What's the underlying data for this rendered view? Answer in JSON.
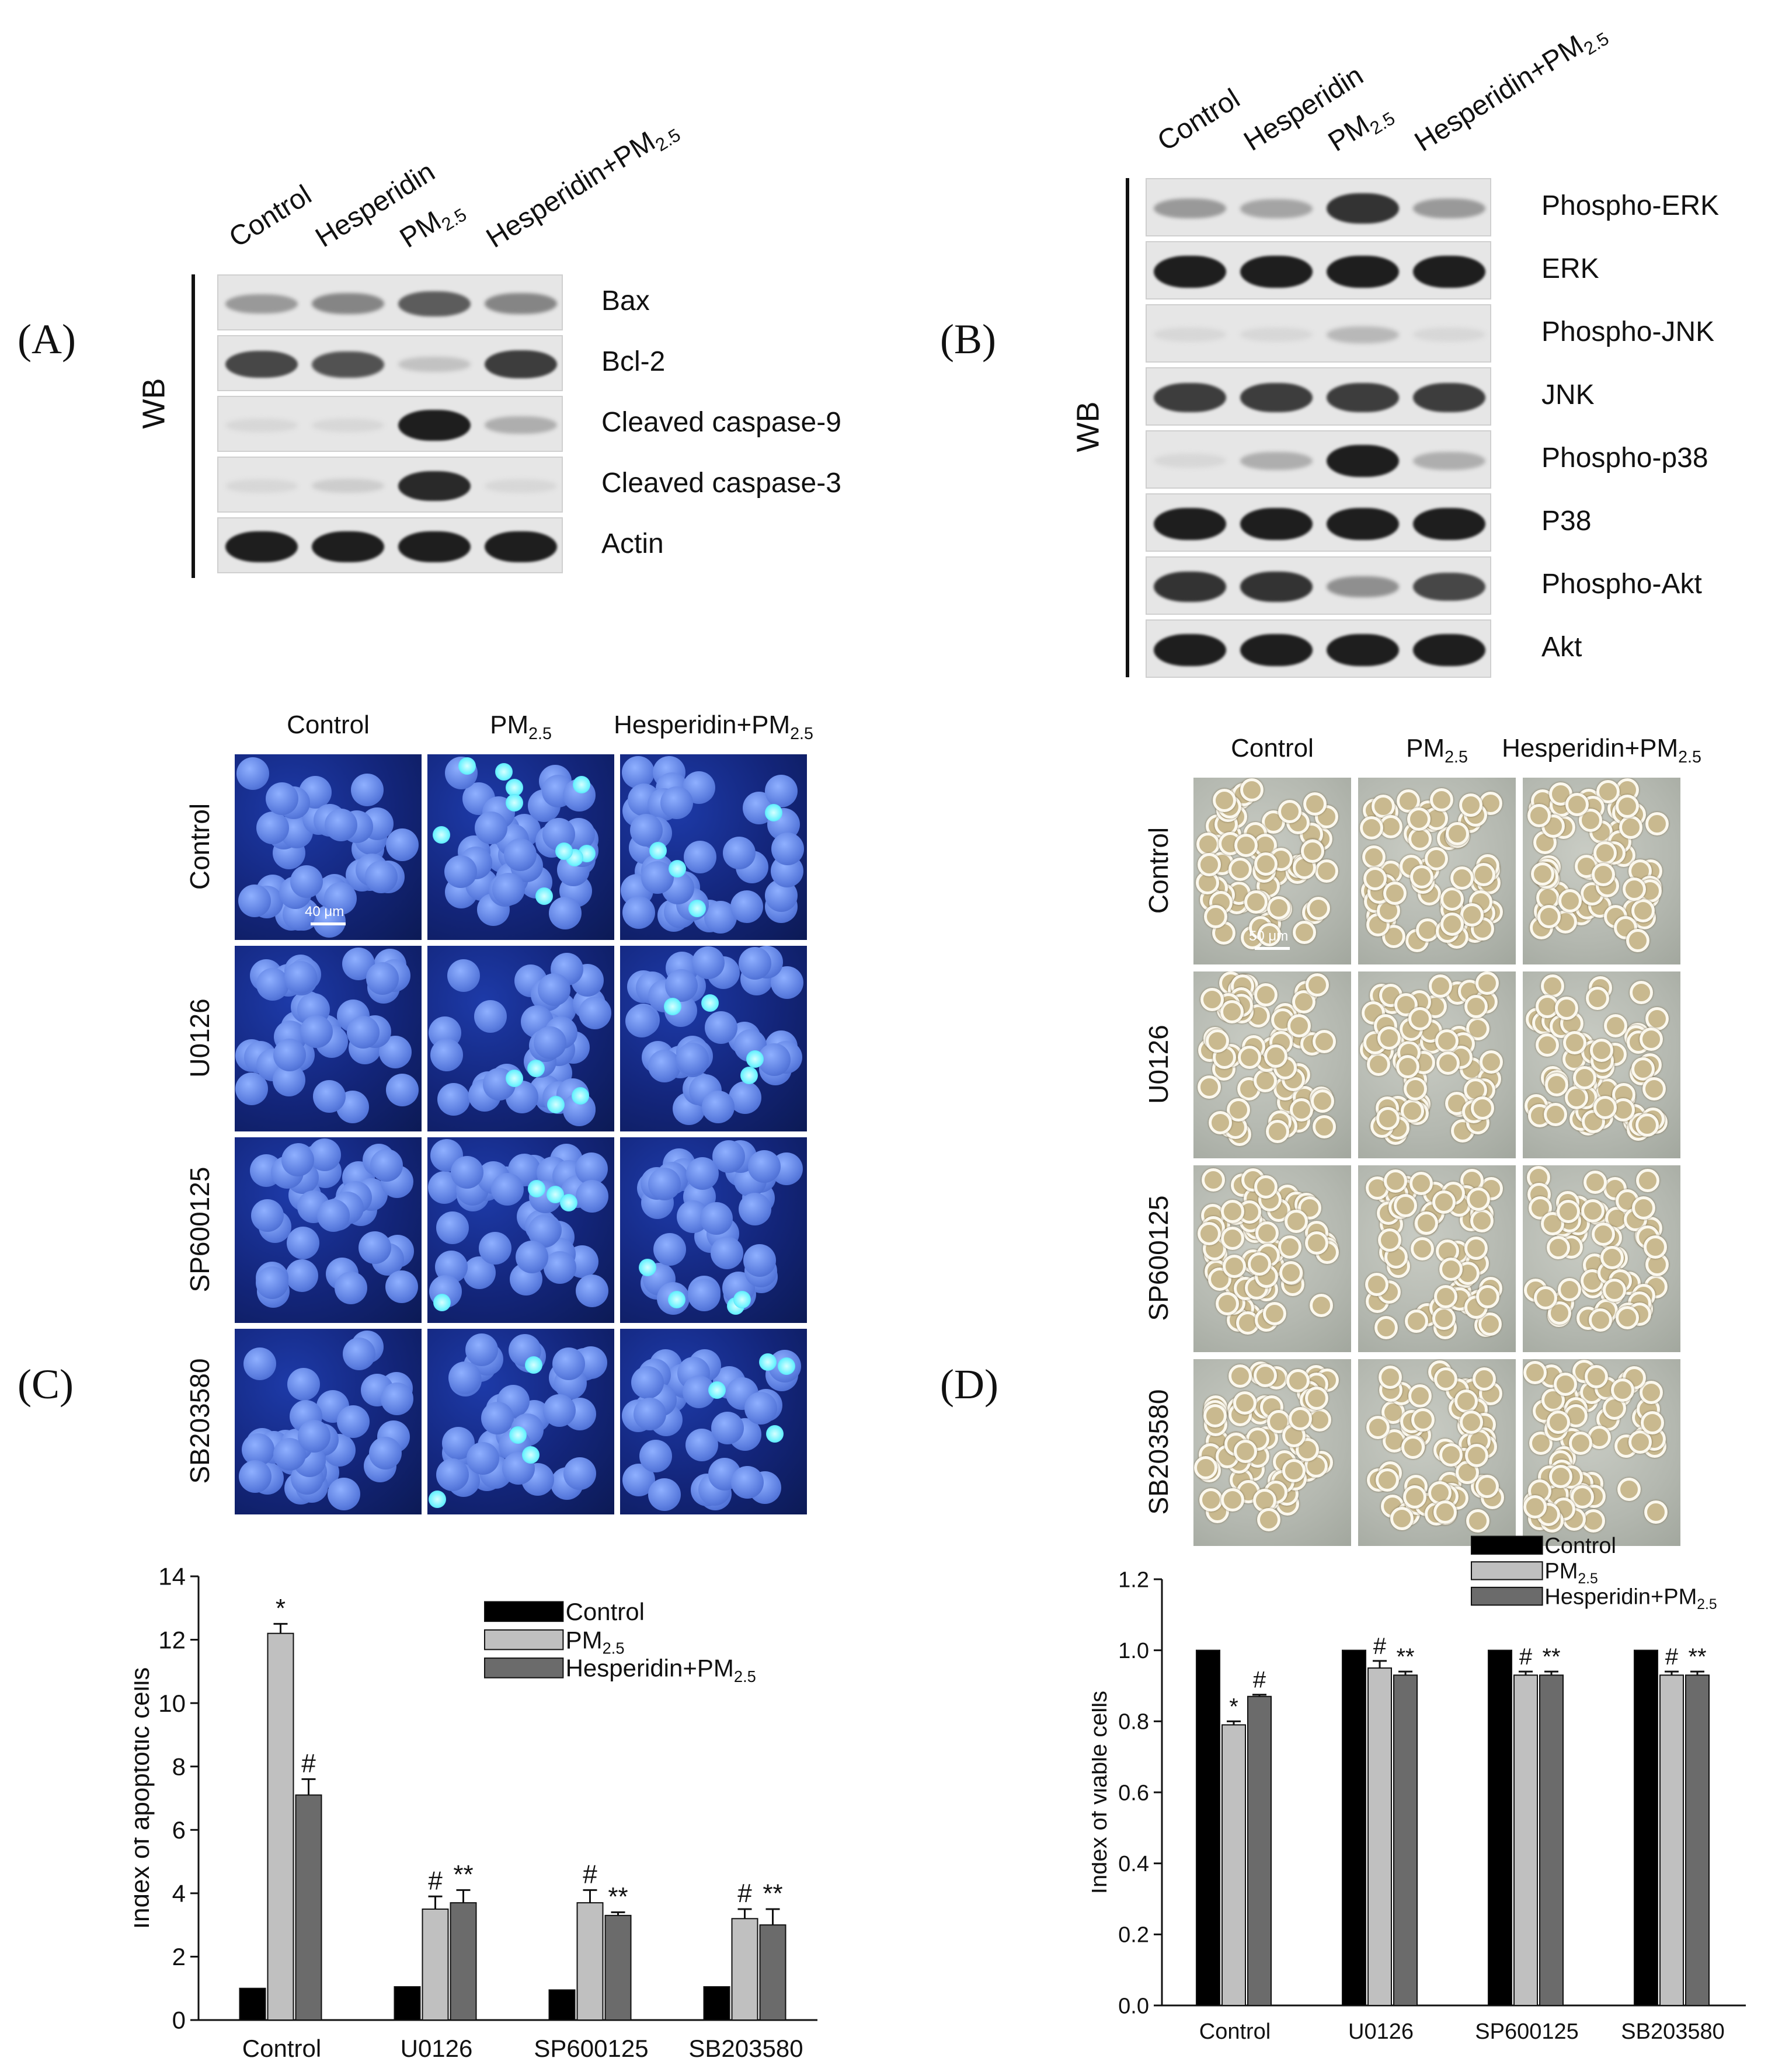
{
  "panelA": {
    "label": "(A)",
    "lanes": [
      "Control",
      "Hesperidin",
      "PM2.5",
      "Hesperidin+PM2.5"
    ],
    "method": "WB",
    "rows": [
      "Bax",
      "Bcl-2",
      "Cleaved caspase-9",
      "Cleaved caspase-3",
      "Actin"
    ],
    "band_intensity": [
      [
        0.35,
        0.45,
        0.65,
        0.45
      ],
      [
        0.75,
        0.7,
        0.15,
        0.8
      ],
      [
        0.05,
        0.05,
        0.95,
        0.25
      ],
      [
        0.05,
        0.1,
        0.9,
        0.05
      ],
      [
        0.95,
        0.95,
        0.95,
        0.95
      ]
    ]
  },
  "panelB": {
    "label": "(B)",
    "lanes": [
      "Control",
      "Hesperidin",
      "PM2.5",
      "Hesperidin+PM2.5"
    ],
    "method": "WB",
    "rows": [
      "Phospho-ERK",
      "ERK",
      "Phospho-JNK",
      "JNK",
      "Phospho-p38",
      "P38",
      "Phospho-Akt",
      "Akt"
    ],
    "band_intensity": [
      [
        0.35,
        0.3,
        0.85,
        0.35
      ],
      [
        0.95,
        0.95,
        0.95,
        0.95
      ],
      [
        0.05,
        0.05,
        0.2,
        0.05
      ],
      [
        0.8,
        0.8,
        0.8,
        0.8
      ],
      [
        0.05,
        0.25,
        0.95,
        0.25
      ],
      [
        0.95,
        0.95,
        0.95,
        0.95
      ],
      [
        0.85,
        0.85,
        0.4,
        0.75
      ],
      [
        0.95,
        0.95,
        0.95,
        0.95
      ]
    ]
  },
  "panelC": {
    "label": "(C)",
    "columns": [
      "Control",
      "PM2.5",
      "Hesperidin+PM2.5"
    ],
    "rows": [
      "Control",
      "U0126",
      "SP600125",
      "SB203580"
    ],
    "scalebar": "40 μm"
  },
  "panelD": {
    "label": "(D)",
    "columns": [
      "Control",
      "PM2.5",
      "Hesperidin+PM2.5"
    ],
    "rows": [
      "Control",
      "U0126",
      "SP600125",
      "SB203580"
    ],
    "scalebar": "50 μm"
  },
  "chart_data": [
    {
      "type": "bar",
      "ylabel": "Index of apoptotic cells",
      "ylim": [
        0,
        14
      ],
      "yticks": [
        "0",
        "2",
        "4",
        "6",
        "8",
        "10",
        "12",
        "14"
      ],
      "categories": [
        "Control",
        "U0126",
        "SP600125",
        "SB203580"
      ],
      "series": [
        {
          "name": "Control",
          "color": "#000000",
          "values": [
            1.0,
            1.05,
            0.95,
            1.05
          ],
          "errors": [
            0,
            0,
            0,
            0
          ]
        },
        {
          "name": "PM2.5",
          "color": "#c0c0c0",
          "values": [
            12.2,
            3.5,
            3.7,
            3.2
          ],
          "errors": [
            0.3,
            0.4,
            0.4,
            0.3
          ]
        },
        {
          "name": "Hesperidin+PM2.5",
          "color": "#6b6b6b",
          "values": [
            7.1,
            3.7,
            3.3,
            3.0
          ],
          "errors": [
            0.5,
            0.4,
            0.1,
            0.5
          ]
        }
      ],
      "annotations": [
        {
          "category": "Control",
          "series": "PM2.5",
          "text": "*"
        },
        {
          "category": "Control",
          "series": "Hesperidin+PM2.5",
          "text": "#"
        },
        {
          "category": "U0126",
          "series": "PM2.5",
          "text": "#"
        },
        {
          "category": "U0126",
          "series": "Hesperidin+PM2.5",
          "text": "**"
        },
        {
          "category": "SP600125",
          "series": "PM2.5",
          "text": "#"
        },
        {
          "category": "SP600125",
          "series": "Hesperidin+PM2.5",
          "text": "**"
        },
        {
          "category": "SB203580",
          "series": "PM2.5",
          "text": "#"
        },
        {
          "category": "SB203580",
          "series": "Hesperidin+PM2.5",
          "text": "**"
        }
      ],
      "legend": "top-right"
    },
    {
      "type": "bar",
      "ylabel": "Index of viable cells",
      "ylim": [
        0,
        1.2
      ],
      "yticks": [
        "0.0",
        "0.2",
        "0.4",
        "0.6",
        "0.8",
        "1.0",
        "1.2"
      ],
      "categories": [
        "Control",
        "U0126",
        "SP600125",
        "SB203580"
      ],
      "series": [
        {
          "name": "Control",
          "color": "#000000",
          "values": [
            1.0,
            1.0,
            1.0,
            1.0
          ],
          "errors": [
            0,
            0,
            0,
            0
          ]
        },
        {
          "name": "PM2.5",
          "color": "#c0c0c0",
          "values": [
            0.79,
            0.95,
            0.93,
            0.93
          ],
          "errors": [
            0.01,
            0.02,
            0.01,
            0.01
          ]
        },
        {
          "name": "Hesperidin+PM2.5",
          "color": "#6b6b6b",
          "values": [
            0.87,
            0.93,
            0.93,
            0.93
          ],
          "errors": [
            0.005,
            0.01,
            0.01,
            0.01
          ]
        }
      ],
      "annotations": [
        {
          "category": "Control",
          "series": "PM2.5",
          "text": "*"
        },
        {
          "category": "Control",
          "series": "Hesperidin+PM2.5",
          "text": "#"
        },
        {
          "category": "U0126",
          "series": "PM2.5",
          "text": "#"
        },
        {
          "category": "U0126",
          "series": "Hesperidin+PM2.5",
          "text": "**"
        },
        {
          "category": "SP600125",
          "series": "PM2.5",
          "text": "#"
        },
        {
          "category": "SP600125",
          "series": "Hesperidin+PM2.5",
          "text": "**"
        },
        {
          "category": "SB203580",
          "series": "PM2.5",
          "text": "#"
        },
        {
          "category": "SB203580",
          "series": "Hesperidin+PM2.5",
          "text": "**"
        }
      ],
      "legend": "top"
    }
  ]
}
